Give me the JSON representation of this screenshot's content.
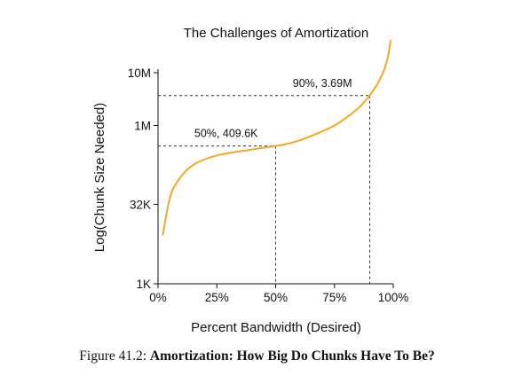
{
  "chart_data": {
    "type": "line",
    "title": "The Challenges of Amortization",
    "xlabel": "Percent Bandwidth (Desired)",
    "ylabel": "Log(Chunk Size Needed)",
    "x_scale": "linear",
    "y_scale": "log",
    "xlim": [
      0,
      100
    ],
    "ylim_bytes": [
      1000,
      10000000
    ],
    "x_ticks": [
      {
        "value": 0,
        "label": "0%"
      },
      {
        "value": 25,
        "label": "25%"
      },
      {
        "value": 50,
        "label": "50%"
      },
      {
        "value": 75,
        "label": "75%"
      },
      {
        "value": 100,
        "label": "100%"
      }
    ],
    "y_ticks": [
      {
        "value": 1000,
        "label": "1K"
      },
      {
        "value": 32000,
        "label": "32K"
      },
      {
        "value": 1000000,
        "label": "1M"
      },
      {
        "value": 10000000,
        "label": "10M"
      }
    ],
    "series": [
      {
        "color": "#f5a623",
        "x": [
          2,
          5,
          8,
          12,
          16,
          20,
          25,
          30,
          35,
          40,
          45,
          50,
          55,
          60,
          65,
          70,
          75,
          80,
          85,
          88,
          90,
          92,
          94,
          96,
          97,
          98,
          99
        ],
        "y": [
          8200,
          42000,
          83000,
          140000,
          190000,
          230000,
          270000,
          300000,
          325000,
          350000,
          380000,
          409600,
          450000,
          520000,
          630000,
          780000,
          1000000,
          1400000,
          2100000,
          2900000,
          3690000,
          5000000,
          7000000,
          11000000,
          15000000,
          23000000,
          45000000
        ]
      }
    ],
    "annotations": [
      {
        "text": "50%, 409.6K",
        "x": 50,
        "y": 409600
      },
      {
        "text": "90%, 3.69M",
        "x": 90,
        "y": 3690000
      }
    ],
    "grid": false,
    "legend": "none"
  },
  "caption": {
    "prefix": "Figure 41.2: ",
    "bold": "Amortization: How Big Do Chunks Have To Be?"
  }
}
